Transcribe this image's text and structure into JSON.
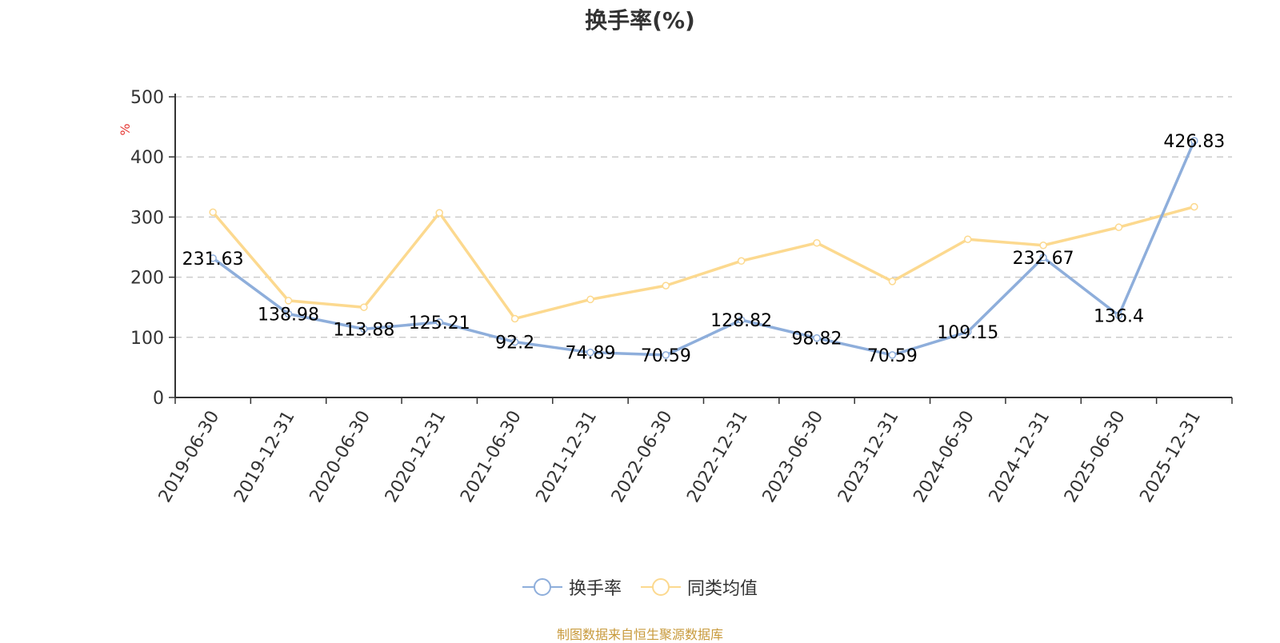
{
  "chart_data": {
    "type": "line",
    "title": "换手率(%)",
    "ylabel": "%",
    "xlabel": "",
    "ylim": [
      0,
      500
    ],
    "yticks": [
      0,
      100,
      200,
      300,
      400,
      500
    ],
    "grid": true,
    "legend_position": "bottom",
    "categories": [
      "2019-06-30",
      "2019-12-31",
      "2020-06-30",
      "2020-12-31",
      "2021-06-30",
      "2021-12-31",
      "2022-06-30",
      "2022-12-31",
      "2023-06-30",
      "2023-12-31",
      "2024-06-30",
      "2024-12-31",
      "2025-06-30",
      "2025-12-31"
    ],
    "series": [
      {
        "name": "换手率",
        "color": "#8eaedb",
        "show_labels": true,
        "values": [
          231.63,
          138.98,
          113.88,
          125.21,
          92.2,
          74.89,
          70.59,
          128.82,
          98.82,
          70.59,
          109.15,
          232.67,
          136.4,
          426.83
        ]
      },
      {
        "name": "同类均值",
        "color": "#fcd98f",
        "show_labels": false,
        "values": [
          308,
          161,
          150,
          307,
          131,
          163,
          186,
          227,
          257,
          193,
          263,
          253,
          283,
          317
        ]
      }
    ]
  },
  "source_note": "制图数据来自恒生聚源数据库",
  "colors": {
    "axis": "#333333",
    "grid": "#cccccc",
    "ylabel": "#e53935",
    "source": "#c89a3c"
  }
}
